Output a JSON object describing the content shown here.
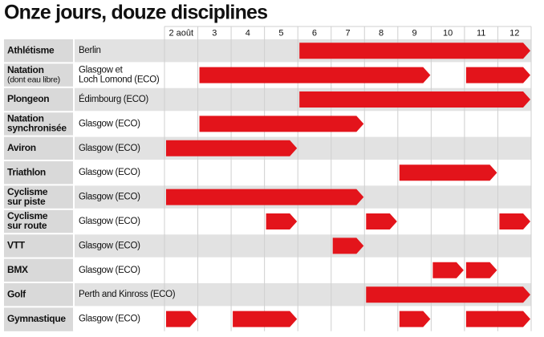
{
  "chart_data": {
    "type": "gantt",
    "title": "Onze jours, douze disciplines",
    "xlim": [
      2,
      13
    ],
    "xticks": [
      {
        "value": 2,
        "label": "2 août"
      },
      3,
      4,
      5,
      6,
      7,
      8,
      9,
      10,
      11,
      12
    ],
    "color": "#e3141b",
    "rows": [
      {
        "name": [
          "Athlétisme"
        ],
        "location": [
          "Berlin"
        ],
        "spans": [
          [
            6,
            13
          ]
        ]
      },
      {
        "name": [
          "Natation",
          "(dont eau libre)"
        ],
        "location": [
          "Glasgow et",
          "Loch Lomond (ECO)"
        ],
        "spans": [
          [
            3,
            10
          ],
          [
            11,
            13
          ]
        ]
      },
      {
        "name": [
          "Plongeon"
        ],
        "location": [
          "Édimbourg (ECO)"
        ],
        "spans": [
          [
            6,
            13
          ]
        ]
      },
      {
        "name": [
          "Natation",
          "synchronisée"
        ],
        "location": [
          "Glasgow (ECO)"
        ],
        "spans": [
          [
            3,
            8
          ]
        ]
      },
      {
        "name": [
          "Aviron"
        ],
        "location": [
          "Glasgow (ECO)"
        ],
        "spans": [
          [
            2,
            6
          ]
        ]
      },
      {
        "name": [
          "Triathlon"
        ],
        "location": [
          "Glasgow (ECO)"
        ],
        "spans": [
          [
            9,
            12
          ]
        ]
      },
      {
        "name": [
          "Cyclisme",
          "sur piste"
        ],
        "location": [
          "Glasgow (ECO)"
        ],
        "spans": [
          [
            2,
            8
          ]
        ]
      },
      {
        "name": [
          "Cyclisme",
          "sur route"
        ],
        "location": [
          "Glasgow (ECO)"
        ],
        "spans": [
          [
            5,
            6
          ],
          [
            8,
            9
          ],
          [
            12,
            13
          ]
        ]
      },
      {
        "name": [
          "VTT"
        ],
        "location": [
          "Glasgow (ECO)"
        ],
        "spans": [
          [
            7,
            8
          ]
        ]
      },
      {
        "name": [
          "BMX"
        ],
        "location": [
          "Glasgow (ECO)"
        ],
        "spans": [
          [
            10,
            11
          ],
          [
            11,
            12
          ]
        ]
      },
      {
        "name": [
          "Golf"
        ],
        "location": [
          "Perth and Kinross (ECO)"
        ],
        "spans": [
          [
            8,
            13
          ]
        ]
      },
      {
        "name": [
          "Gymnastique"
        ],
        "location": [
          "Glasgow (ECO)"
        ],
        "spans": [
          [
            2,
            3
          ],
          [
            4,
            6
          ],
          [
            9,
            10
          ],
          [
            11,
            13
          ]
        ]
      }
    ]
  }
}
